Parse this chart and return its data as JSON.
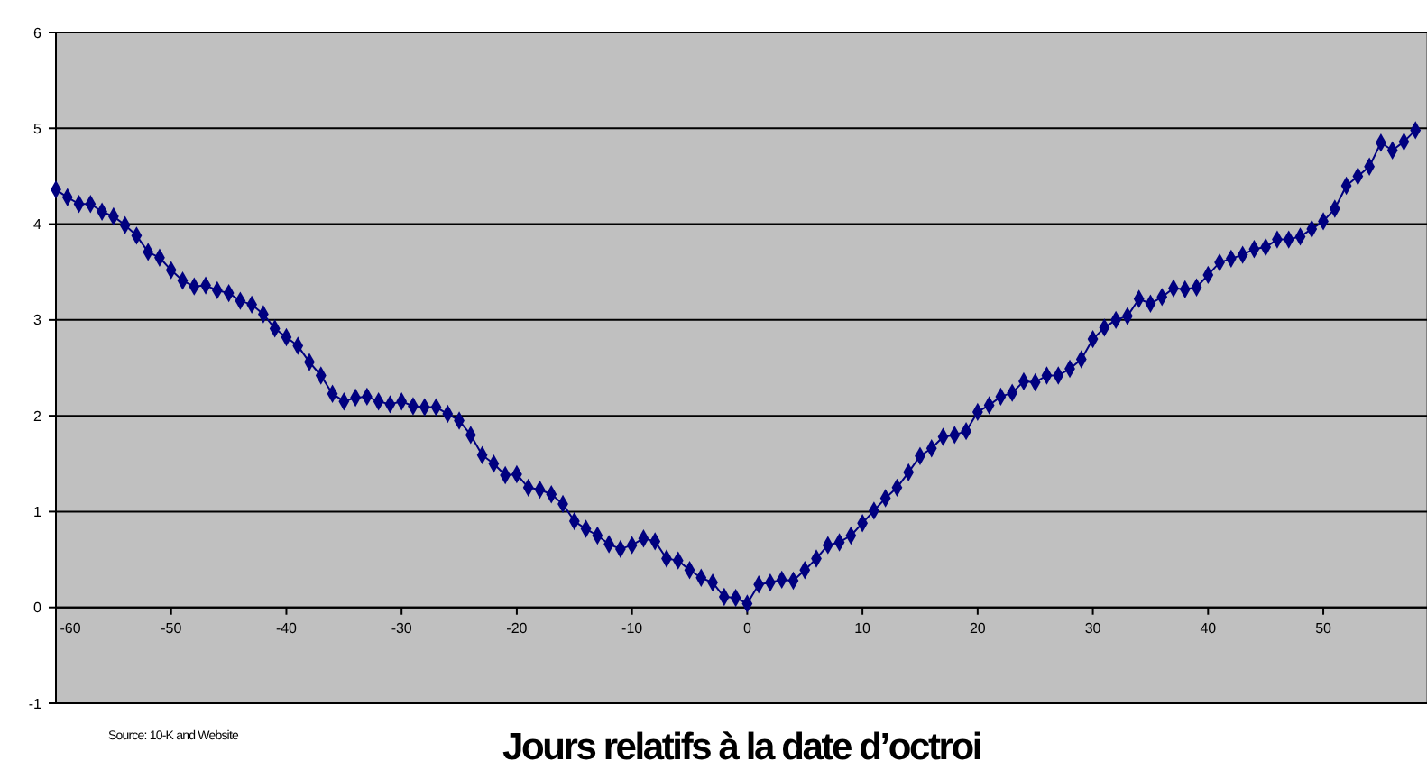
{
  "chart_data": {
    "type": "line",
    "xlabel": "Jours relatifs à la date d’octroi",
    "annotations": [
      "Source: 10-K and Website"
    ],
    "x": [
      -60,
      -59,
      -58,
      -57,
      -56,
      -55,
      -54,
      -53,
      -52,
      -51,
      -50,
      -49,
      -48,
      -47,
      -46,
      -45,
      -44,
      -43,
      -42,
      -41,
      -40,
      -39,
      -38,
      -37,
      -36,
      -35,
      -34,
      -33,
      -32,
      -31,
      -30,
      -29,
      -28,
      -27,
      -26,
      -25,
      -24,
      -23,
      -22,
      -21,
      -20,
      -19,
      -18,
      -17,
      -16,
      -15,
      -14,
      -13,
      -12,
      -11,
      -10,
      -9,
      -8,
      -7,
      -6,
      -5,
      -4,
      -3,
      -2,
      -1,
      0,
      1,
      2,
      3,
      4,
      5,
      6,
      7,
      8,
      9,
      10,
      11,
      12,
      13,
      14,
      15,
      16,
      17,
      18,
      19,
      20,
      21,
      22,
      23,
      24,
      25,
      26,
      27,
      28,
      29,
      30,
      31,
      32,
      33,
      34,
      35,
      36,
      37,
      38,
      39,
      40,
      41,
      42,
      43,
      44,
      45,
      46,
      47,
      48,
      49,
      50,
      51,
      52,
      53,
      54,
      55,
      56,
      57,
      58
    ],
    "series": [
      {
        "color": "#000080",
        "values": [
          4.36,
          4.28,
          4.21,
          4.21,
          4.13,
          4.08,
          3.99,
          3.88,
          3.71,
          3.65,
          3.52,
          3.41,
          3.35,
          3.36,
          3.31,
          3.28,
          3.2,
          3.16,
          3.06,
          2.91,
          2.82,
          2.73,
          2.56,
          2.42,
          2.23,
          2.15,
          2.19,
          2.2,
          2.15,
          2.12,
          2.15,
          2.1,
          2.09,
          2.09,
          2.02,
          1.95,
          1.8,
          1.59,
          1.5,
          1.38,
          1.39,
          1.25,
          1.23,
          1.18,
          1.08,
          0.9,
          0.82,
          0.75,
          0.66,
          0.61,
          0.65,
          0.72,
          0.69,
          0.51,
          0.49,
          0.39,
          0.31,
          0.26,
          0.11,
          0.1,
          0.04,
          0.24,
          0.26,
          0.29,
          0.28,
          0.39,
          0.51,
          0.65,
          0.68,
          0.75,
          0.88,
          1.01,
          1.14,
          1.25,
          1.41,
          1.58,
          1.66,
          1.78,
          1.8,
          1.84,
          2.04,
          2.11,
          2.2,
          2.24,
          2.36,
          2.35,
          2.42,
          2.42,
          2.49,
          2.59,
          2.8,
          2.92,
          3.0,
          3.04,
          3.22,
          3.17,
          3.24,
          3.33,
          3.32,
          3.34,
          3.47,
          3.6,
          3.64,
          3.68,
          3.74,
          3.76,
          3.84,
          3.84,
          3.87,
          3.95,
          4.03,
          4.16,
          4.4,
          4.5,
          4.6,
          4.85,
          4.77,
          4.86,
          4.98
        ]
      }
    ],
    "xlim": [
      -60,
      59
    ],
    "ylim": [
      -1,
      6
    ],
    "xticks": [
      -60,
      -50,
      -40,
      -30,
      -20,
      -10,
      0,
      10,
      20,
      30,
      40,
      50
    ],
    "yticks": [
      -1,
      0,
      1,
      2,
      3,
      4,
      5,
      6
    ],
    "grid": "y",
    "marker": "diamond",
    "line_style": "solid"
  }
}
